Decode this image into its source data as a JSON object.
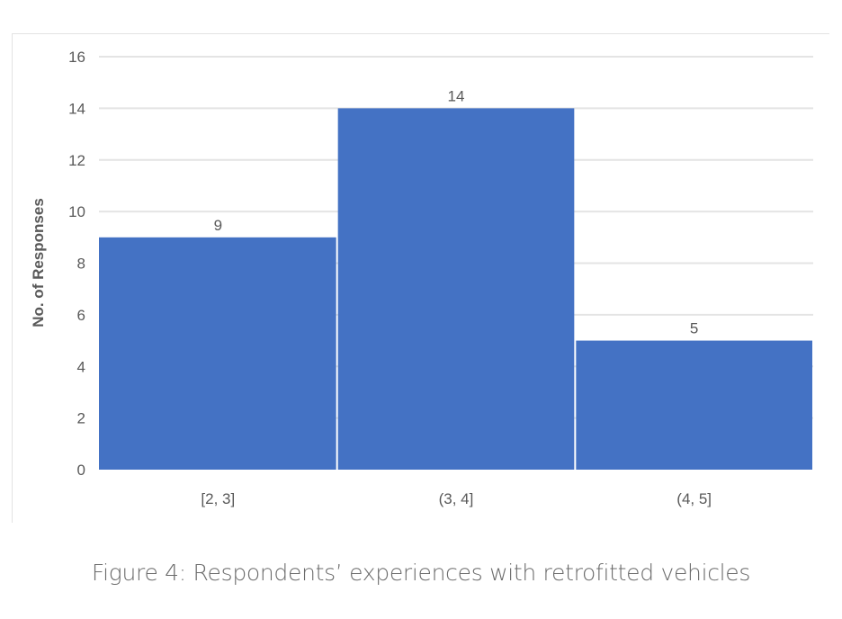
{
  "chart_data": {
    "type": "bar",
    "categories": [
      "[2, 3]",
      "(3, 4]",
      "(4, 5]"
    ],
    "values": [
      9,
      14,
      5
    ],
    "data_labels": [
      "9",
      "14",
      "5"
    ],
    "xlabel": "",
    "ylabel": "No. of Responses",
    "ylim": [
      0,
      16
    ],
    "yticks": [
      0,
      2,
      4,
      6,
      8,
      10,
      12,
      14,
      16
    ],
    "grid": true,
    "bar_color": "#4472c4",
    "legend": "none"
  },
  "caption": "Figure 4: Respondents’ experiences with retrofitted vehicles"
}
